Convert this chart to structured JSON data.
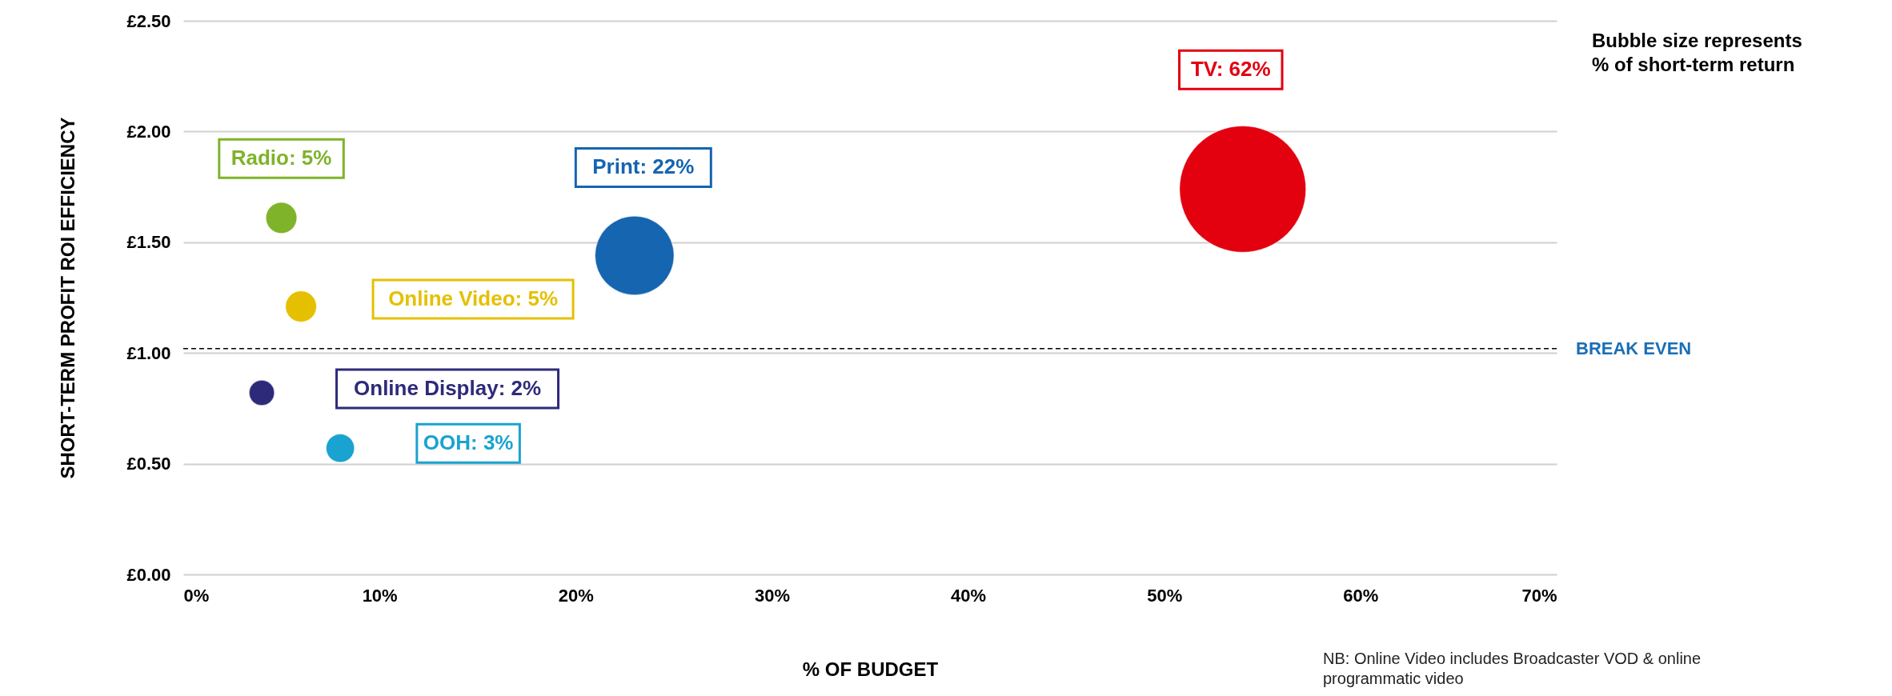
{
  "chart_data": {
    "type": "bubble",
    "xlabel": "% OF BUDGET",
    "ylabel": "SHORT-TERM PROFIT ROI EFFICIENCY",
    "xlim": [
      0,
      70
    ],
    "xticks": [
      {
        "value": 0,
        "label": "0%"
      },
      {
        "value": 10,
        "label": "10%"
      },
      {
        "value": 20,
        "label": "20%"
      },
      {
        "value": 30,
        "label": "30%"
      },
      {
        "value": 40,
        "label": "40%"
      },
      {
        "value": 50,
        "label": "50%"
      },
      {
        "value": 60,
        "label": "60%"
      },
      {
        "value": 70,
        "label": "70%"
      }
    ],
    "ylim": [
      0,
      2.5
    ],
    "yticks": [
      {
        "value": 0,
        "label": "£0.00"
      },
      {
        "value": 0.5,
        "label": "£0.50"
      },
      {
        "value": 1,
        "label": "£1.00"
      },
      {
        "value": 1.5,
        "label": "£1.50"
      },
      {
        "value": 2,
        "label": "£2.00"
      },
      {
        "value": 2.5,
        "label": "£2.50"
      }
    ],
    "grid": "y",
    "legend": false,
    "series": [
      {
        "name": "Radio: 5%",
        "color": "#7fb32a",
        "x": [
          5
        ],
        "values": [
          1.61
        ],
        "sizes": [
          0.06
        ]
      },
      {
        "name": "Online Video: 5%",
        "color": "#e5c000",
        "x": [
          6
        ],
        "values": [
          1.21
        ],
        "sizes": [
          0.06
        ]
      },
      {
        "name": "Online Display: 2%",
        "color": "#2e2a7a",
        "x": [
          4
        ],
        "values": [
          0.82
        ],
        "sizes": [
          0.04
        ]
      },
      {
        "name": "OOH: 3%",
        "color": "#1aa3d0",
        "x": [
          8
        ],
        "values": [
          0.57
        ],
        "sizes": [
          0.05
        ]
      },
      {
        "name": "Print: 22%",
        "color": "#1565b0",
        "x": [
          23
        ],
        "values": [
          1.44
        ],
        "sizes": [
          0.39
        ]
      },
      {
        "name": "TV: 62%",
        "color": "#e3000f",
        "x": [
          54
        ],
        "values": [
          1.74
        ],
        "sizes": [
          1
        ]
      }
    ],
    "ref_lines": [
      {
        "axis": "y",
        "value": 1.02,
        "label": "BREAK EVEN",
        "color": "#000000",
        "line_style": "dashed"
      }
    ],
    "annotations": [
      "Bubble size represents % of short-term return",
      "NB: Online Video includes Broadcaster VOD & online programmatic video"
    ]
  }
}
